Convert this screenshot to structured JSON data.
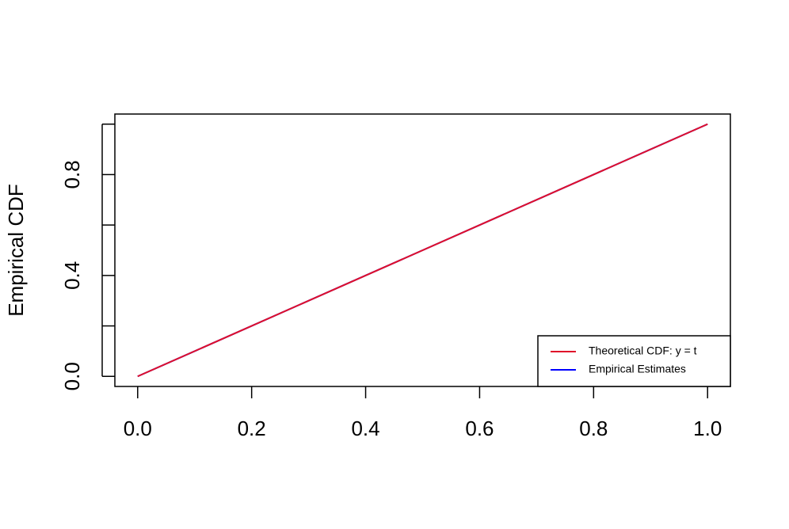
{
  "chart_data": {
    "type": "line",
    "ylabel": "Empirical CDF",
    "xlim": [
      -0.04,
      1.04
    ],
    "ylim": [
      -0.04,
      1.04
    ],
    "xticks": [
      {
        "value": 0,
        "label": "0.0"
      },
      {
        "value": 0.2,
        "label": "0.2"
      },
      {
        "value": 0.4,
        "label": "0.4"
      },
      {
        "value": 0.6,
        "label": "0.6"
      },
      {
        "value": 0.8,
        "label": "0.8"
      },
      {
        "value": 1,
        "label": "1.0"
      }
    ],
    "yticks": [
      {
        "value": 0,
        "label": "0.0"
      },
      {
        "value": 0.2,
        "label": null
      },
      {
        "value": 0.4,
        "label": "0.4"
      },
      {
        "value": 0.6,
        "label": null
      },
      {
        "value": 0.8,
        "label": "0.8"
      },
      {
        "value": 1,
        "label": null
      }
    ],
    "legend": "bottom-right",
    "series": [
      {
        "name": "Empirical Estimates",
        "color": "#0000ff",
        "x": [
          0,
          0.1,
          0.2,
          0.3,
          0.4,
          0.5,
          0.6,
          0.7,
          0.8,
          0.9,
          1
        ],
        "values": [
          0,
          0.1,
          0.2,
          0.3,
          0.4,
          0.5,
          0.6,
          0.7,
          0.8,
          0.9,
          1
        ]
      },
      {
        "name": "Theoretical CDF: y = t",
        "color": "#e0102a",
        "x": [
          0,
          1
        ],
        "values": [
          0,
          1
        ]
      }
    ]
  }
}
